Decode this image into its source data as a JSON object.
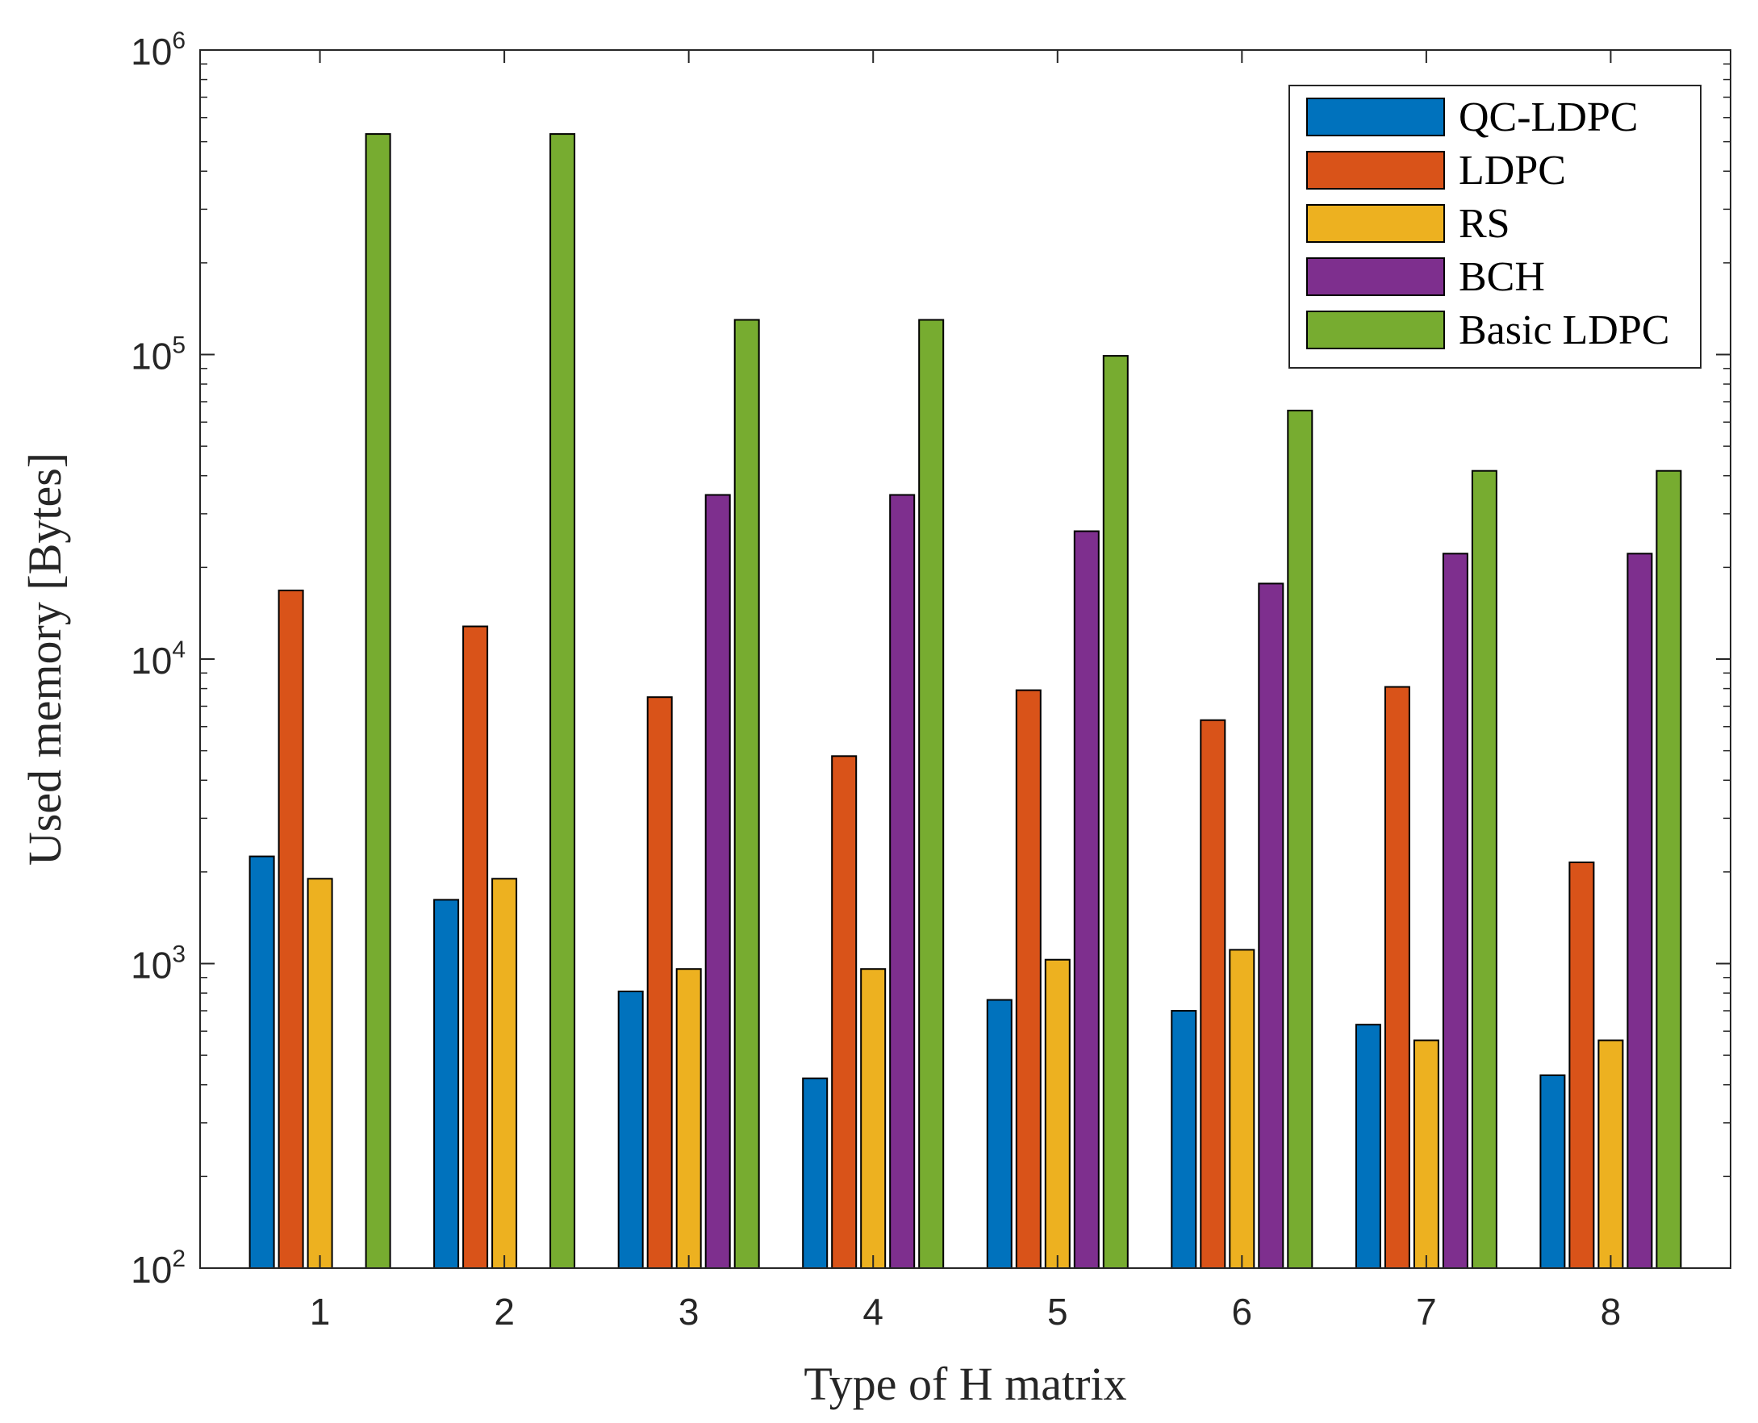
{
  "chart_data": {
    "type": "bar",
    "xlabel": "Type of H matrix",
    "ylabel": "Used memory [Bytes]",
    "yscale": "log",
    "ylim": [
      100,
      1000000
    ],
    "yticks": [
      {
        "value": 100,
        "base": "10",
        "exp": "2"
      },
      {
        "value": 1000,
        "base": "10",
        "exp": "3"
      },
      {
        "value": 10000,
        "base": "10",
        "exp": "4"
      },
      {
        "value": 100000,
        "base": "10",
        "exp": "5"
      },
      {
        "value": 1000000,
        "base": "10",
        "exp": "6"
      }
    ],
    "categories": [
      "1",
      "2",
      "3",
      "4",
      "5",
      "6",
      "7",
      "8"
    ],
    "legend_position": "top-right",
    "grid": false,
    "series": [
      {
        "name": "QC-LDPC",
        "color": "#0072BD",
        "values": [
          2250,
          1620,
          810,
          420,
          760,
          700,
          630,
          430
        ]
      },
      {
        "name": "LDPC",
        "color": "#D95319",
        "values": [
          16800,
          12800,
          7500,
          4800,
          7900,
          6300,
          8100,
          2150
        ]
      },
      {
        "name": "RS",
        "color": "#EDB120",
        "values": [
          1900,
          1900,
          960,
          960,
          1030,
          1110,
          560,
          560
        ]
      },
      {
        "name": "BCH",
        "color": "#7E2F8E",
        "values": [
          null,
          null,
          34600,
          34600,
          26300,
          17700,
          22200,
          22200
        ]
      },
      {
        "name": "Basic LDPC",
        "color": "#77AC30",
        "values": [
          530000,
          530000,
          130000,
          130000,
          99000,
          65500,
          41500,
          41500
        ]
      }
    ]
  }
}
